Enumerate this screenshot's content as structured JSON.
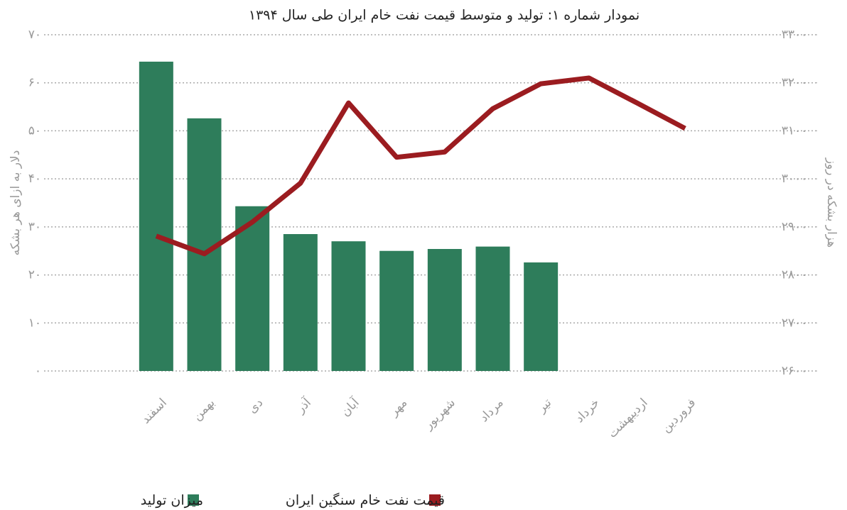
{
  "chart_data": {
    "type": "bar",
    "title": "نمودار شماره ۱:  تولید و متوسط قیمت نفت خام ایران طی سال ۱۳۹۴",
    "y_label": "دلار به ازای هر بشکه",
    "y2_label": "هزار بشکه در روز",
    "categories": [
      "اسفند",
      "بهمن",
      "دی",
      "آذر",
      "آبان",
      "مهر",
      "شهریور",
      "مرداد",
      "تیر",
      "خرداد",
      "اردیبهشت",
      "فروردین"
    ],
    "series": [
      {
        "name": "میزان تولید",
        "type": "bar",
        "axis": "y2",
        "color": "#2e7d5b",
        "values": [
          3244,
          3126,
          2943,
          2885,
          2870,
          2850,
          2854,
          2859,
          2826,
          null,
          null,
          null
        ]
      },
      {
        "name": "قیمت نفت خام سنگین ایران",
        "type": "line",
        "axis": "y",
        "color": "#9b1c20",
        "values": [
          28.1,
          24.4,
          31,
          39.1,
          55.8,
          44.5,
          45.6,
          54.6,
          59.8,
          61,
          55.8,
          50.5
        ]
      }
    ],
    "ylim": [
      0,
      70
    ],
    "yticks": [
      {
        "value": 0,
        "label": "۰"
      },
      {
        "value": 10,
        "label": "۱۰"
      },
      {
        "value": 20,
        "label": "۲۰"
      },
      {
        "value": 30,
        "label": "۳۰"
      },
      {
        "value": 40,
        "label": "۴۰"
      },
      {
        "value": 50,
        "label": "۵۰"
      },
      {
        "value": 60,
        "label": "۶۰"
      },
      {
        "value": 70,
        "label": "۷۰"
      }
    ],
    "y2lim": [
      2600,
      3300
    ],
    "y2ticks": [
      {
        "value": 2600,
        "label": "۲۶۰۰"
      },
      {
        "value": 2700,
        "label": "۲۷۰۰"
      },
      {
        "value": 2800,
        "label": "۲۸۰۰"
      },
      {
        "value": 2900,
        "label": "۲۹۰۰"
      },
      {
        "value": 3000,
        "label": "۳۰۰۰"
      },
      {
        "value": 3100,
        "label": "۳۱۰۰"
      },
      {
        "value": 3200,
        "label": "۳۲۰۰"
      },
      {
        "value": 3300,
        "label": "۳۳۰۰"
      }
    ],
    "grid": true
  }
}
